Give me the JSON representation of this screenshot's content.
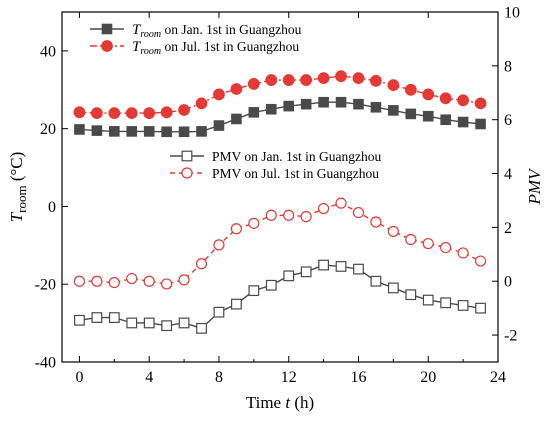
{
  "chart_data": {
    "type": "line",
    "x": [
      0,
      1,
      2,
      3,
      4,
      5,
      6,
      7,
      8,
      9,
      10,
      11,
      12,
      13,
      14,
      15,
      16,
      17,
      18,
      19,
      20,
      21,
      22,
      23
    ],
    "xlabel": "Time t (h)",
    "xlabel_parts": {
      "prefix": "Time ",
      "var": "t",
      "suffix": " (h)"
    },
    "xlim": [
      -1,
      24
    ],
    "xticks": [
      0,
      4,
      8,
      12,
      16,
      20,
      24
    ],
    "left_axis": {
      "label": "Troom (°C)",
      "label_parts": {
        "var": "T",
        "sub": "room",
        "unit": " (°C)"
      },
      "ylim": [
        -40,
        50
      ],
      "ticks": [
        -40,
        -20,
        0,
        20,
        40
      ]
    },
    "right_axis": {
      "label": "PMV",
      "ylim": [
        -3,
        10
      ],
      "ticks": [
        -2,
        0,
        2,
        4,
        6,
        8,
        10
      ]
    },
    "series": [
      {
        "name": "Troom on Jan. 1st in Guangzhou",
        "name_parts": {
          "var": "T",
          "sub": "room",
          "rest": " on Jan. 1st in Guangzhou"
        },
        "axis": "left",
        "color": "#4a4a4a",
        "marker": "filled-square",
        "line": "solid",
        "values": [
          19.8,
          19.5,
          19.3,
          19.3,
          19.3,
          19.2,
          19.2,
          19.3,
          20.8,
          22.5,
          24.2,
          25.0,
          25.8,
          26.3,
          26.8,
          26.8,
          26.3,
          25.5,
          24.7,
          23.8,
          23.2,
          22.3,
          21.7,
          21.2
        ]
      },
      {
        "name": "Troom on Jul. 1st in Guangzhou",
        "name_parts": {
          "var": "T",
          "sub": "room",
          "rest": " on Jul. 1st in Guangzhou"
        },
        "axis": "left",
        "color": "#e53935",
        "marker": "filled-circle",
        "line": "dash-dot",
        "values": [
          24.2,
          24.0,
          24.0,
          24.0,
          24.0,
          24.2,
          24.8,
          26.5,
          28.8,
          30.2,
          31.5,
          32.5,
          32.5,
          32.5,
          33.0,
          33.5,
          33.0,
          32.3,
          31.2,
          30.0,
          28.8,
          27.8,
          27.3,
          26.5
        ]
      },
      {
        "name": "PMV on Jan. 1st in Guangzhou",
        "axis": "right",
        "color": "#4a4a4a",
        "marker": "open-square",
        "line": "solid",
        "values": [
          -1.45,
          -1.35,
          -1.35,
          -1.55,
          -1.55,
          -1.65,
          -1.55,
          -1.75,
          -1.15,
          -0.85,
          -0.35,
          -0.15,
          0.2,
          0.35,
          0.6,
          0.55,
          0.45,
          0.0,
          -0.25,
          -0.5,
          -0.7,
          -0.8,
          -0.9,
          -1.0
        ]
      },
      {
        "name": "PMV on Jul. 1st in Guangzhou",
        "axis": "right",
        "color": "#e53935",
        "marker": "open-circle",
        "line": "dashed",
        "values": [
          0.0,
          0.0,
          -0.05,
          0.1,
          0.0,
          -0.1,
          0.05,
          0.65,
          1.35,
          1.95,
          2.15,
          2.45,
          2.45,
          2.4,
          2.7,
          2.9,
          2.55,
          2.2,
          1.85,
          1.55,
          1.4,
          1.25,
          1.05,
          0.75
        ]
      }
    ],
    "grid": false,
    "legend_placement": "top-left and middle"
  }
}
